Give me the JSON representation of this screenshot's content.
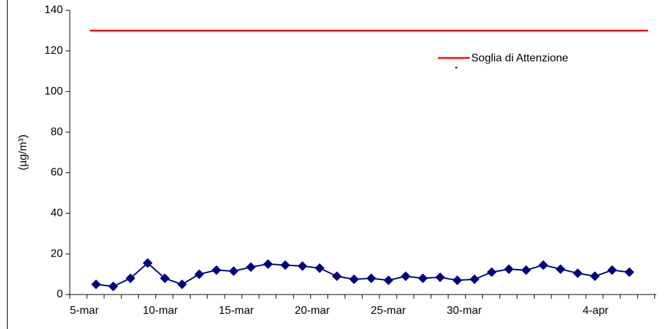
{
  "chart_data": {
    "type": "line",
    "y_label": "(µg/m³)",
    "ylim": [
      0,
      140
    ],
    "yticks": [
      0,
      20,
      40,
      60,
      80,
      100,
      120,
      140
    ],
    "x_tick_labels": [
      "5-mar",
      "10-mar",
      "15-mar",
      "20-mar",
      "25-mar",
      "30-mar",
      "4-apr"
    ],
    "series": [
      {
        "color": "#000080",
        "values": [
          5,
          4,
          8,
          15.5,
          8,
          5,
          10,
          12,
          11.5,
          13.5,
          15,
          14.5,
          14,
          13,
          9,
          7.5,
          8,
          7,
          9,
          8,
          8.5,
          7,
          7.5,
          11,
          12.5,
          12,
          14.5,
          12.5,
          10.5,
          9,
          12,
          11
        ]
      }
    ],
    "threshold": {
      "name": "Soglia di Attenzione",
      "value": 130,
      "color": "#ff0000"
    }
  }
}
